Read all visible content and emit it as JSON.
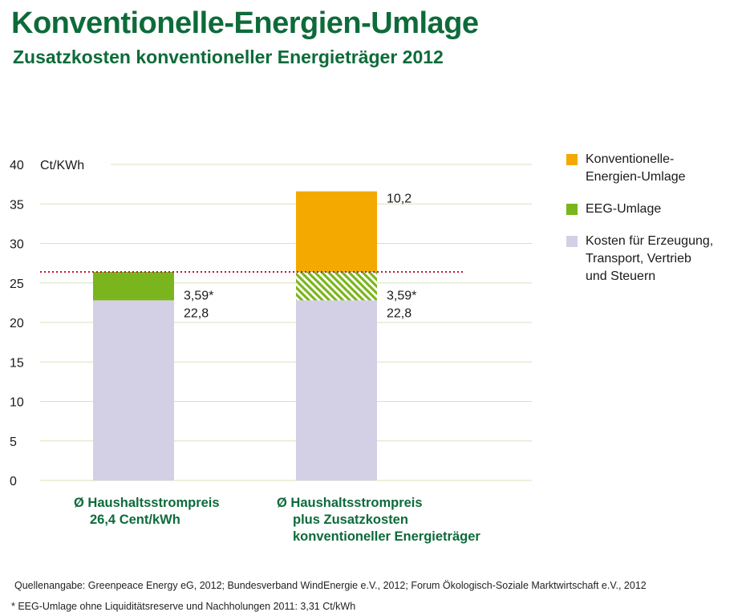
{
  "chart_data": {
    "type": "bar",
    "title": "Konventionelle-Energien-Umlage",
    "subtitle": "Zusatzkosten konventioneller Energieträger 2012",
    "ylabel": "Ct/KWh",
    "ylim": [
      0,
      40
    ],
    "yticks": [
      "0",
      "5",
      "10",
      "15",
      "20",
      "25",
      "30",
      "35",
      "40"
    ],
    "reference_line": {
      "value": 26.39,
      "style": "dotted",
      "color": "#d0103a"
    },
    "categories": [
      {
        "lines": [
          "Ø Haushaltsstrompreis",
          "26,4 Cent/kWh"
        ]
      },
      {
        "lines": [
          "Ø Haushaltsstrompreis",
          "plus Zusatzkosten",
          "konventioneller Energieträger"
        ]
      }
    ],
    "series": [
      {
        "name": "Kosten für Erzeugung, Transport, Vertrieb und Steuern",
        "legend_lines": [
          "Kosten für Erzeugung,",
          "Transport, Vertrieb",
          "und Steuern"
        ],
        "color": "#d3d0e6",
        "values": [
          22.8,
          22.8
        ],
        "labels": [
          "22,8",
          "22,8"
        ],
        "hatched": [
          false,
          false
        ]
      },
      {
        "name": "EEG-Umlage",
        "legend_lines": [
          "EEG-Umlage"
        ],
        "color": "#7ab51d",
        "values": [
          3.59,
          3.59
        ],
        "labels": [
          "3,59*",
          "3,59*"
        ],
        "hatched": [
          false,
          true
        ]
      },
      {
        "name": "Konventionelle-Energien-Umlage",
        "legend_lines": [
          "Konventionelle-",
          "Energien-Umlage"
        ],
        "color": "#f4a900",
        "values": [
          0,
          10.2
        ],
        "labels": [
          "",
          "10,2"
        ],
        "hatched": [
          false,
          false
        ]
      }
    ],
    "legend_order": [
      2,
      1,
      0
    ],
    "legend_position": "right"
  },
  "source": "Quellenangabe: Greenpeace Energy eG, 2012; Bundesverband WindEnergie e.V., 2012; Forum Ökologisch-Soziale Marktwirtschaft e.V., 2012",
  "footnote": "* EEG-Umlage ohne Liquiditätsreserve und Nachholungen 2011: 3,31 Ct/kWh",
  "colors": {
    "accent": "#0d6b3a",
    "grid": "#d8e2b8"
  }
}
